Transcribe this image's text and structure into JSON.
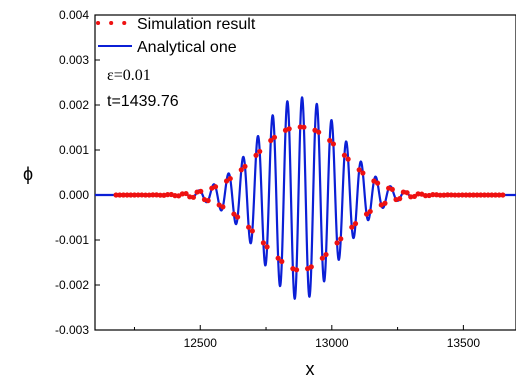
{
  "chart_data": {
    "type": "line",
    "xlabel": "x",
    "ylabel": "ϕ",
    "xlim": [
      12100,
      13700
    ],
    "ylim": [
      -0.003,
      0.004
    ],
    "x_ticks": [
      12500,
      13000,
      13500
    ],
    "x_tick_labels": [
      "12500",
      "13000",
      "13500"
    ],
    "y_ticks": [
      -0.003,
      -0.002,
      -0.001,
      0.0,
      0.001,
      0.002,
      0.003,
      0.004
    ],
    "y_tick_labels": [
      "-0.003",
      "-0.002",
      "-0.001",
      "0.000",
      "0.001",
      "0.002",
      "0.003",
      "0.004"
    ],
    "legend_position": "top-left",
    "annotations": [
      "ε=0.01",
      "t=1439.76"
    ],
    "wave_packet": {
      "center_x": 12880,
      "envelope_amplitude": 0.00225,
      "envelope_width": 155,
      "wavelength": 56,
      "phase_x": 12887,
      "skew": 8e-05
    },
    "series": [
      {
        "name": "Simulation result",
        "style": "dotted",
        "color": "#ee1111",
        "sample_step": 14
      },
      {
        "name": "Analytical one",
        "style": "solid",
        "color": "#0b1fd6",
        "sample_step": 1
      }
    ],
    "extrema_examples": [
      {
        "x": 12887,
        "y": 0.00228
      },
      {
        "x": 12859,
        "y": -0.00238
      },
      {
        "x": 12915,
        "y": -0.00222
      }
    ]
  }
}
